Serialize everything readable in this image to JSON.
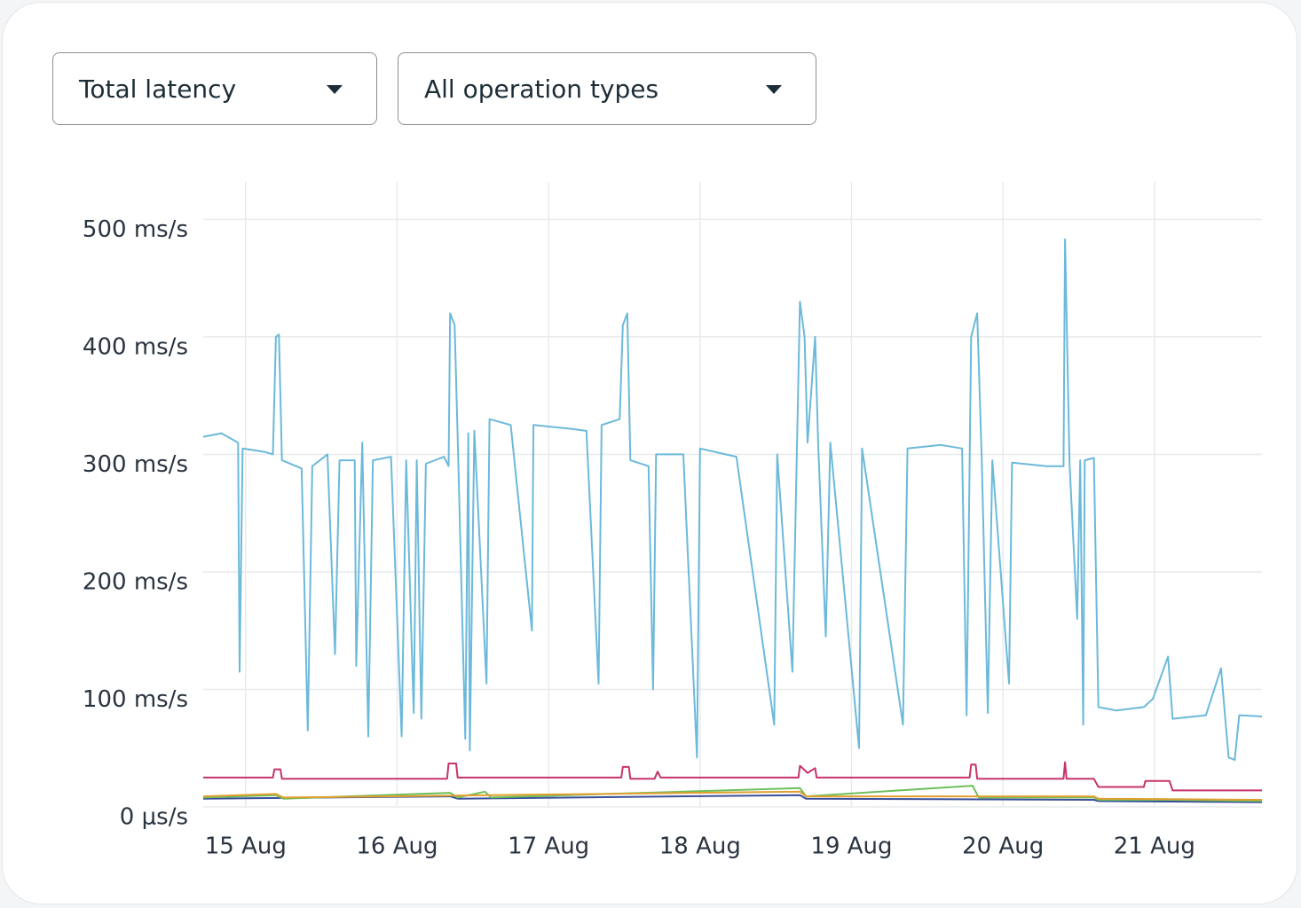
{
  "controls": {
    "metric": "Total latency",
    "operation": "All operation types"
  },
  "chart_data": {
    "type": "line",
    "grid": true,
    "xlim": [
      14.72,
      21.71
    ],
    "xticks": [
      {
        "value": 15,
        "label": "15 Aug"
      },
      {
        "value": 16,
        "label": "16 Aug"
      },
      {
        "value": 17,
        "label": "17 Aug"
      },
      {
        "value": 18,
        "label": "18 Aug"
      },
      {
        "value": 19,
        "label": "19 Aug"
      },
      {
        "value": 20,
        "label": "20 Aug"
      },
      {
        "value": 21,
        "label": "21 Aug"
      }
    ],
    "ylim": [
      0,
      532
    ],
    "yticks": [
      {
        "value": 0,
        "label": "0 μs/s"
      },
      {
        "value": 100,
        "label": "100 ms/s"
      },
      {
        "value": 200,
        "label": "200 ms/s"
      },
      {
        "value": 300,
        "label": "300 ms/s"
      },
      {
        "value": 400,
        "label": "400 ms/s"
      },
      {
        "value": 500,
        "label": "500 ms/s"
      }
    ],
    "series": [
      {
        "color": "#6cb9da",
        "x": [
          14.72,
          14.84,
          14.95,
          14.96,
          14.98,
          15.13,
          15.18,
          15.2,
          15.22,
          15.24,
          15.37,
          15.41,
          15.44,
          15.54,
          15.59,
          15.62,
          15.72,
          15.73,
          15.77,
          15.81,
          15.84,
          15.96,
          16.03,
          16.06,
          16.11,
          16.13,
          16.16,
          16.19,
          16.31,
          16.34,
          16.35,
          16.38,
          16.4,
          16.45,
          16.47,
          16.48,
          16.51,
          16.59,
          16.61,
          16.75,
          16.89,
          16.9,
          17.13,
          17.25,
          17.33,
          17.35,
          17.47,
          17.49,
          17.52,
          17.54,
          17.66,
          17.69,
          17.71,
          17.89,
          17.98,
          18.0,
          18.24,
          18.49,
          18.51,
          18.61,
          18.64,
          18.66,
          18.69,
          18.71,
          18.76,
          18.78,
          18.83,
          18.86,
          19.05,
          19.07,
          19.34,
          19.37,
          19.59,
          19.73,
          19.76,
          19.79,
          19.83,
          19.86,
          19.9,
          19.93,
          20.04,
          20.06,
          20.29,
          20.4,
          20.41,
          20.44,
          20.49,
          20.51,
          20.53,
          20.54,
          20.6,
          20.63,
          20.75,
          20.93,
          20.99,
          21.09,
          21.12,
          21.34,
          21.44,
          21.47,
          21.49,
          21.53,
          21.56,
          21.71
        ],
        "values": [
          315,
          318,
          310,
          115,
          305,
          302,
          300,
          400,
          402,
          295,
          288,
          65,
          290,
          300,
          130,
          295,
          295,
          120,
          310,
          60,
          295,
          298,
          60,
          295,
          80,
          295,
          75,
          292,
          298,
          290,
          420,
          410,
          315,
          58,
          318,
          48,
          320,
          105,
          330,
          325,
          150,
          325,
          322,
          320,
          105,
          325,
          330,
          410,
          420,
          295,
          290,
          100,
          300,
          300,
          42,
          305,
          298,
          70,
          300,
          115,
          305,
          430,
          400,
          310,
          400,
          310,
          145,
          310,
          50,
          305,
          70,
          305,
          308,
          305,
          78,
          400,
          420,
          295,
          80,
          295,
          105,
          293,
          290,
          290,
          483,
          292,
          160,
          295,
          70,
          295,
          297,
          85,
          82,
          85,
          92,
          128,
          75,
          78,
          118,
          72,
          42,
          40,
          78,
          77
        ]
      },
      {
        "color": "#c7336b",
        "x": [
          14.72,
          15.18,
          15.19,
          15.23,
          15.24,
          16.33,
          16.34,
          16.39,
          16.4,
          17.48,
          17.49,
          17.53,
          17.54,
          17.7,
          17.72,
          17.74,
          18.65,
          18.66,
          18.71,
          18.76,
          18.77,
          19.78,
          19.79,
          19.82,
          19.83,
          20.4,
          20.41,
          20.42,
          20.6,
          20.63,
          20.93,
          20.94,
          21.1,
          21.12,
          21.71
        ],
        "values": [
          25,
          25,
          32,
          32,
          24,
          24,
          37,
          37,
          25,
          25,
          34,
          34,
          24,
          24,
          30,
          25,
          25,
          35,
          29,
          33,
          25,
          25,
          36,
          36,
          24,
          24,
          38,
          24,
          24,
          17,
          17,
          22,
          22,
          14,
          14
        ]
      },
      {
        "color": "#e0a030",
        "x": [
          14.72,
          15.2,
          15.25,
          18.66,
          18.7,
          20.6,
          20.63,
          21.71
        ],
        "values": [
          9,
          11,
          8,
          13,
          9,
          9,
          7,
          6
        ]
      },
      {
        "color": "#6dbf5b",
        "x": [
          14.72,
          15.2,
          15.25,
          16.35,
          16.4,
          16.58,
          16.62,
          18.66,
          18.7,
          19.8,
          19.84,
          20.6,
          20.63,
          21.12,
          21.71
        ],
        "values": [
          8,
          10,
          7,
          12,
          8,
          13,
          8,
          16,
          9,
          18,
          8,
          8,
          6,
          6,
          5
        ]
      },
      {
        "color": "#3a4f9a",
        "x": [
          14.72,
          16.35,
          16.4,
          18.66,
          18.7,
          20.6,
          20.63,
          21.71
        ],
        "values": [
          7,
          9,
          7,
          10,
          7,
          6,
          5,
          4
        ]
      }
    ]
  }
}
